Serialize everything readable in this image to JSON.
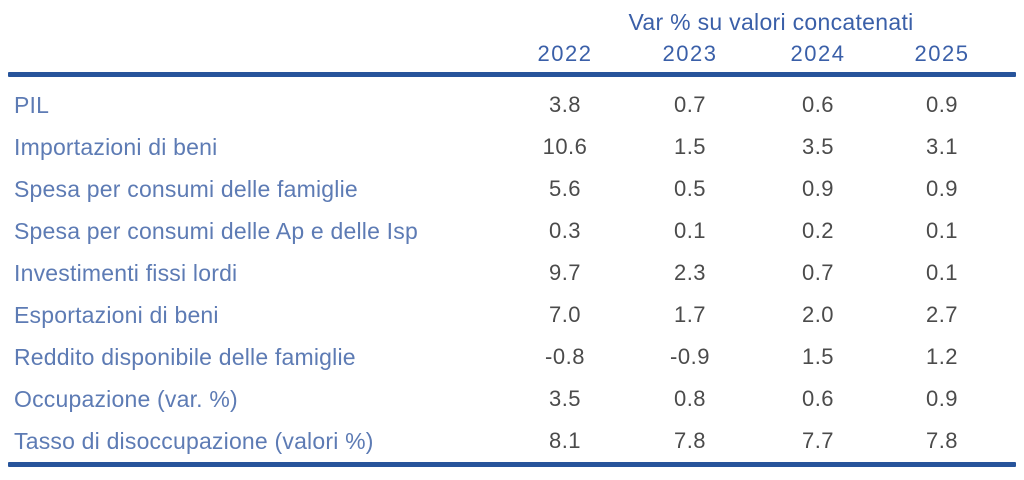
{
  "chart_data": {
    "type": "table",
    "title": "Var % su valori concatenati",
    "columns": [
      "2022",
      "2023",
      "2024",
      "2025"
    ],
    "rows": [
      {
        "label": "PIL",
        "values": [
          "3.8",
          "0.7",
          "0.6",
          "0.9"
        ]
      },
      {
        "label": "Importazioni di beni",
        "values": [
          "10.6",
          "1.5",
          "3.5",
          "3.1"
        ]
      },
      {
        "label": "Spesa per consumi delle famiglie",
        "values": [
          "5.6",
          "0.5",
          "0.9",
          "0.9"
        ]
      },
      {
        "label": "Spesa per consumi delle Ap e delle Isp",
        "values": [
          "0.3",
          "0.1",
          "0.2",
          "0.1"
        ]
      },
      {
        "label": "Investimenti fissi lordi",
        "values": [
          "9.7",
          "2.3",
          "0.7",
          "0.1"
        ]
      },
      {
        "label": "Esportazioni di beni",
        "values": [
          "7.0",
          "1.7",
          "2.0",
          "2.7"
        ]
      },
      {
        "label": "Reddito disponibile delle famiglie",
        "values": [
          "-0.8",
          "-0.9",
          "1.5",
          "1.2"
        ]
      },
      {
        "label": "Occupazione (var. %)",
        "values": [
          "3.5",
          "0.8",
          "0.6",
          "0.9"
        ]
      },
      {
        "label": "Tasso di disoccupazione (valori %)",
        "values": [
          "8.1",
          "7.8",
          "7.7",
          "7.8"
        ]
      }
    ],
    "layout": {
      "legend": "none",
      "grid": "off",
      "rules": "thick top and bottom horizontal rules"
    },
    "colors": {
      "header_text": "#3a5fa8",
      "row_label_text": "#5d7bb4",
      "value_text": "#4b4b4b",
      "rule": "#27549b",
      "background": "#ffffff"
    }
  }
}
